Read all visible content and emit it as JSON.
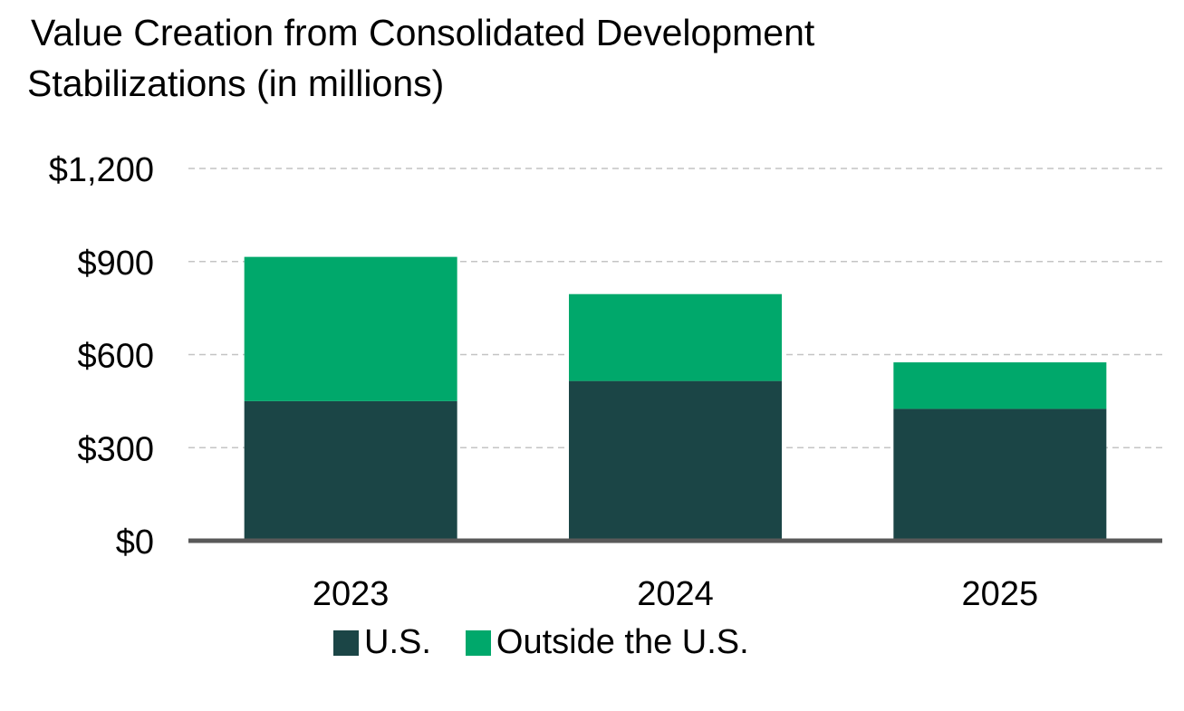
{
  "chart_data": {
    "type": "bar",
    "stacked": true,
    "title_lines": [
      "Value Creation from Consolidated Development",
      "Stabilizations (in millions)"
    ],
    "categories": [
      "2023",
      "2024",
      "2025"
    ],
    "series": [
      {
        "name": "U.S.",
        "color": "#1b4546",
        "values": [
          450,
          515,
          425
        ]
      },
      {
        "name": "Outside the U.S.",
        "color": "#00a86b",
        "values": [
          465,
          280,
          150
        ]
      }
    ],
    "yticks": [
      0,
      300,
      600,
      900,
      1200
    ],
    "ytick_labels": [
      "$0",
      "$300",
      "$600",
      "$900",
      "$1,200"
    ],
    "ylim": [
      0,
      1200
    ],
    "xlabel": "",
    "ylabel": "",
    "grid": true,
    "legend_position": "bottom"
  }
}
